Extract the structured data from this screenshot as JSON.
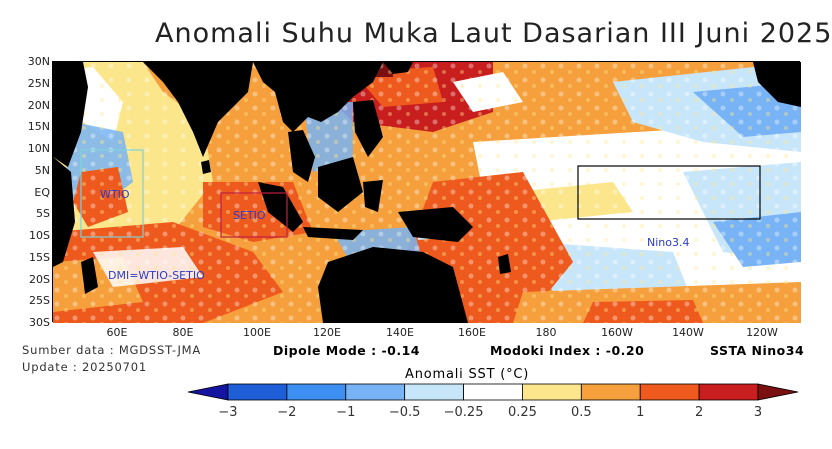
{
  "title": "Anomali Suhu Muka Laut Dasarian III Juni 2025",
  "y_axis": [
    "30N",
    "25N",
    "20N",
    "15N",
    "10N",
    "5N",
    "EQ",
    "5S",
    "10S",
    "15S",
    "20S",
    "25S",
    "30S"
  ],
  "x_axis": [
    "60E",
    "80E",
    "100E",
    "120E",
    "140E",
    "160E",
    "180",
    "160W",
    "140W",
    "120W"
  ],
  "source": "Sumber data : MGDSST-JMA",
  "update": "Update : 20250701",
  "dipole": "Dipole Mode : -0.14",
  "modoki": "Modoki Index : -0.20",
  "ssta": "SSTA Nino34",
  "regions": {
    "wtio": "WTIO",
    "setio": "SETIO",
    "nino34": "Nino3.4",
    "dmi": "DMI=WTIO-SETIO"
  },
  "legend": {
    "title": "Anomali SST (°C)",
    "ticks": [
      "-3",
      "-2",
      "-1",
      "-0.5",
      "-0.25",
      "0.25",
      "0.5",
      "1",
      "2",
      "3"
    ],
    "colors": [
      "#1414a0",
      "#1e5fd8",
      "#3c8ef0",
      "#78b4f5",
      "#c8e6fa",
      "#ffffff",
      "#fce68c",
      "#f5a03c",
      "#ee5a1e",
      "#c81e1e",
      "#7a1010"
    ]
  }
}
